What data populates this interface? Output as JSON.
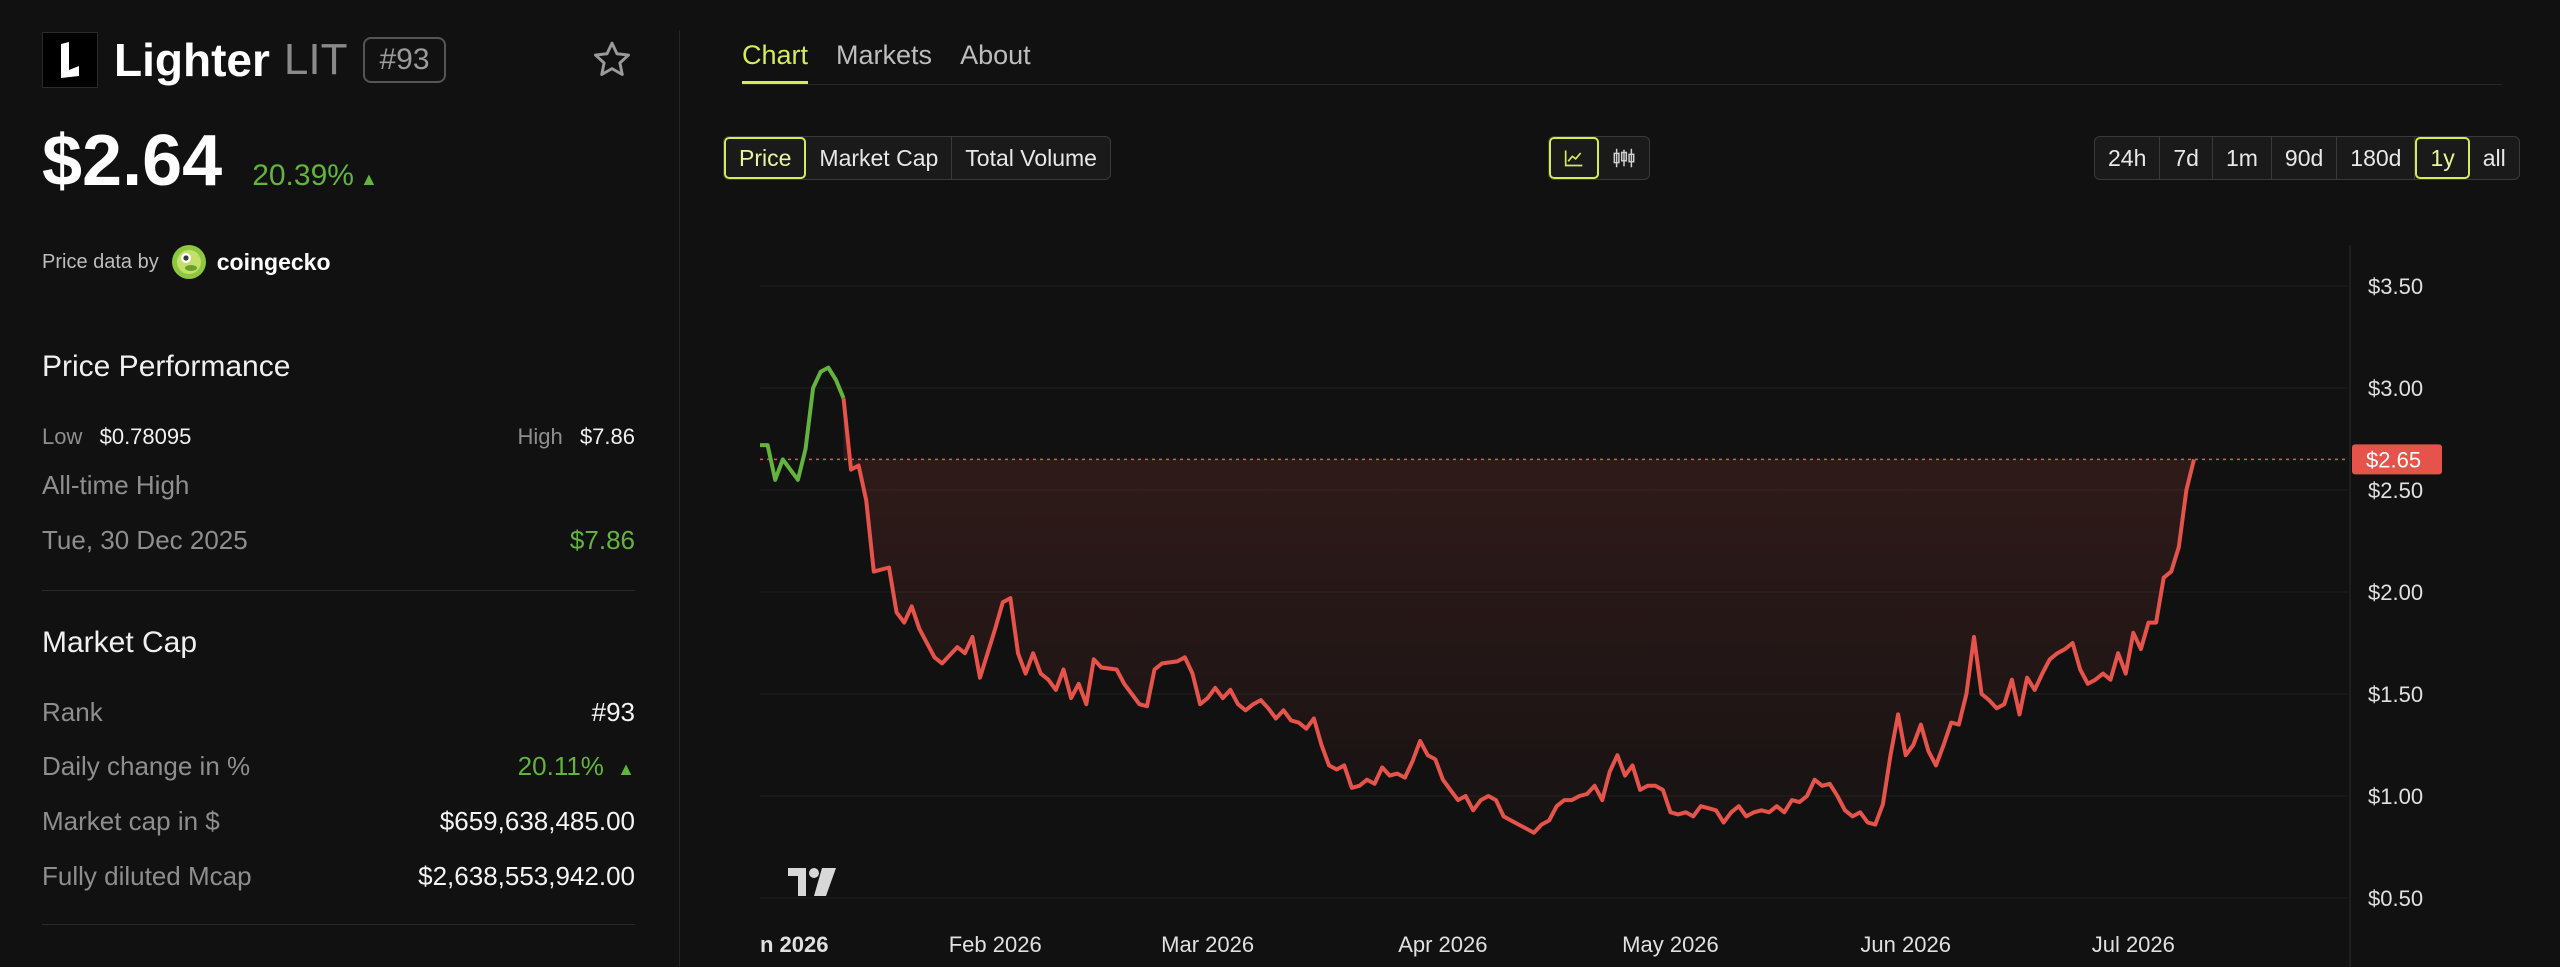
{
  "coin": {
    "name": "Lighter",
    "symbol": "LIT",
    "rank": "#93",
    "price": "$2.64",
    "change_24h": "20.39%"
  },
  "price_source": {
    "prefix": "Price data by",
    "provider": "coingecko"
  },
  "price_performance": {
    "title": "Price Performance",
    "low_label": "Low",
    "low_value": "$0.78095",
    "high_label": "High",
    "high_value": "$7.86",
    "ath_label": "All-time High",
    "ath_date": "Tue, 30 Dec 2025",
    "ath_value": "$7.86"
  },
  "market_cap": {
    "title": "Market Cap",
    "rows": [
      {
        "label": "Rank",
        "value": "#93"
      },
      {
        "label": "Daily change in %",
        "value": "20.11%"
      },
      {
        "label": "Market cap in $",
        "value": "$659,638,485.00"
      },
      {
        "label": "Fully diluted Mcap",
        "value": "$2,638,553,942.00"
      }
    ]
  },
  "tabs": [
    "Chart",
    "Markets",
    "About"
  ],
  "active_tab": "Chart",
  "metric_buttons": [
    "Price",
    "Market Cap",
    "Total Volume"
  ],
  "active_metric": "Price",
  "chart_type_buttons": [
    "line-chart-icon",
    "candlestick-icon"
  ],
  "range_buttons": [
    "24h",
    "7d",
    "1m",
    "90d",
    "180d",
    "1y",
    "all"
  ],
  "active_range": "1y",
  "colors": {
    "accent": "#d4ec57",
    "up": "#63b33e",
    "down": "#e5534b",
    "background": "#111111"
  },
  "chart_data": {
    "type": "line",
    "current_price_label": "$2.65",
    "current_price": 2.65,
    "ylim": [
      0.5,
      3.75
    ],
    "y_ticks": [
      {
        "value": 3.5,
        "label": "$3.50"
      },
      {
        "value": 3.0,
        "label": "$3.00"
      },
      {
        "value": 2.5,
        "label": "$2.50"
      },
      {
        "value": 2.0,
        "label": "$2.00"
      },
      {
        "value": 1.5,
        "label": "$1.50"
      },
      {
        "value": 1.0,
        "label": "$1.00"
      },
      {
        "value": 0.5,
        "label": "$0.50"
      }
    ],
    "x_start": "2026-01-01",
    "x_end": "2026-07-10",
    "x_ticks": [
      {
        "date": "2026-01-01",
        "label": "n 2026",
        "bold": true
      },
      {
        "date": "2026-02-01",
        "label": "Feb 2026"
      },
      {
        "date": "2026-03-01",
        "label": "Mar 2026"
      },
      {
        "date": "2026-04-01",
        "label": "Apr 2026"
      },
      {
        "date": "2026-05-01",
        "label": "May 2026"
      },
      {
        "date": "2026-06-01",
        "label": "Jun 2026"
      },
      {
        "date": "2026-07-01",
        "label": "Jul 2026"
      }
    ],
    "green_series": [
      {
        "x": "2026-01-01",
        "y": 2.72
      },
      {
        "x": "2026-01-02",
        "y": 2.72
      },
      {
        "x": "2026-01-03",
        "y": 2.55
      },
      {
        "x": "2026-01-04",
        "y": 2.65
      },
      {
        "x": "2026-01-05",
        "y": 2.6
      },
      {
        "x": "2026-01-06",
        "y": 2.55
      },
      {
        "x": "2026-01-07",
        "y": 2.7
      },
      {
        "x": "2026-01-08",
        "y": 3.0
      },
      {
        "x": "2026-01-09",
        "y": 3.08
      },
      {
        "x": "2026-01-10",
        "y": 3.1
      },
      {
        "x": "2026-01-11",
        "y": 3.04
      },
      {
        "x": "2026-01-12",
        "y": 2.95
      }
    ],
    "red_series": [
      {
        "x": "2026-01-12",
        "y": 2.95
      },
      {
        "x": "2026-01-13",
        "y": 2.6
      },
      {
        "x": "2026-01-14",
        "y": 2.62
      },
      {
        "x": "2026-01-15",
        "y": 2.45
      },
      {
        "x": "2026-01-16",
        "y": 2.1
      },
      {
        "x": "2026-01-18",
        "y": 2.12
      },
      {
        "x": "2026-01-19",
        "y": 1.9
      },
      {
        "x": "2026-01-20",
        "y": 1.85
      },
      {
        "x": "2026-01-21",
        "y": 1.93
      },
      {
        "x": "2026-01-22",
        "y": 1.82
      },
      {
        "x": "2026-01-24",
        "y": 1.68
      },
      {
        "x": "2026-01-25",
        "y": 1.65
      },
      {
        "x": "2026-01-27",
        "y": 1.73
      },
      {
        "x": "2026-01-28",
        "y": 1.7
      },
      {
        "x": "2026-01-29",
        "y": 1.78
      },
      {
        "x": "2026-01-30",
        "y": 1.58
      },
      {
        "x": "2026-02-01",
        "y": 1.82
      },
      {
        "x": "2026-02-02",
        "y": 1.95
      },
      {
        "x": "2026-02-03",
        "y": 1.97
      },
      {
        "x": "2026-02-04",
        "y": 1.7
      },
      {
        "x": "2026-02-05",
        "y": 1.6
      },
      {
        "x": "2026-02-06",
        "y": 1.7
      },
      {
        "x": "2026-02-07",
        "y": 1.6
      },
      {
        "x": "2026-02-08",
        "y": 1.57
      },
      {
        "x": "2026-02-09",
        "y": 1.52
      },
      {
        "x": "2026-02-10",
        "y": 1.62
      },
      {
        "x": "2026-02-11",
        "y": 1.48
      },
      {
        "x": "2026-02-12",
        "y": 1.55
      },
      {
        "x": "2026-02-13",
        "y": 1.45
      },
      {
        "x": "2026-02-14",
        "y": 1.67
      },
      {
        "x": "2026-02-15",
        "y": 1.63
      },
      {
        "x": "2026-02-17",
        "y": 1.62
      },
      {
        "x": "2026-02-18",
        "y": 1.55
      },
      {
        "x": "2026-02-19",
        "y": 1.5
      },
      {
        "x": "2026-02-20",
        "y": 1.45
      },
      {
        "x": "2026-02-21",
        "y": 1.44
      },
      {
        "x": "2026-02-22",
        "y": 1.62
      },
      {
        "x": "2026-02-23",
        "y": 1.65
      },
      {
        "x": "2026-02-25",
        "y": 1.66
      },
      {
        "x": "2026-02-26",
        "y": 1.68
      },
      {
        "x": "2026-02-27",
        "y": 1.6
      },
      {
        "x": "2026-02-28",
        "y": 1.45
      },
      {
        "x": "2026-03-01",
        "y": 1.48
      },
      {
        "x": "2026-03-02",
        "y": 1.53
      },
      {
        "x": "2026-03-03",
        "y": 1.48
      },
      {
        "x": "2026-03-04",
        "y": 1.52
      },
      {
        "x": "2026-03-05",
        "y": 1.45
      },
      {
        "x": "2026-03-06",
        "y": 1.42
      },
      {
        "x": "2026-03-07",
        "y": 1.45
      },
      {
        "x": "2026-03-08",
        "y": 1.47
      },
      {
        "x": "2026-03-09",
        "y": 1.43
      },
      {
        "x": "2026-03-10",
        "y": 1.38
      },
      {
        "x": "2026-03-11",
        "y": 1.42
      },
      {
        "x": "2026-03-12",
        "y": 1.37
      },
      {
        "x": "2026-03-13",
        "y": 1.36
      },
      {
        "x": "2026-03-14",
        "y": 1.33
      },
      {
        "x": "2026-03-15",
        "y": 1.38
      },
      {
        "x": "2026-03-16",
        "y": 1.25
      },
      {
        "x": "2026-03-17",
        "y": 1.15
      },
      {
        "x": "2026-03-18",
        "y": 1.13
      },
      {
        "x": "2026-03-19",
        "y": 1.15
      },
      {
        "x": "2026-03-20",
        "y": 1.04
      },
      {
        "x": "2026-03-21",
        "y": 1.05
      },
      {
        "x": "2026-03-22",
        "y": 1.08
      },
      {
        "x": "2026-03-23",
        "y": 1.06
      },
      {
        "x": "2026-03-24",
        "y": 1.14
      },
      {
        "x": "2026-03-25",
        "y": 1.1
      },
      {
        "x": "2026-03-26",
        "y": 1.11
      },
      {
        "x": "2026-03-27",
        "y": 1.09
      },
      {
        "x": "2026-03-28",
        "y": 1.17
      },
      {
        "x": "2026-03-29",
        "y": 1.27
      },
      {
        "x": "2026-03-30",
        "y": 1.2
      },
      {
        "x": "2026-03-31",
        "y": 1.18
      },
      {
        "x": "2026-04-01",
        "y": 1.08
      },
      {
        "x": "2026-04-02",
        "y": 1.03
      },
      {
        "x": "2026-04-03",
        "y": 0.98
      },
      {
        "x": "2026-04-04",
        "y": 1.0
      },
      {
        "x": "2026-04-05",
        "y": 0.93
      },
      {
        "x": "2026-04-06",
        "y": 0.98
      },
      {
        "x": "2026-04-07",
        "y": 1.0
      },
      {
        "x": "2026-04-08",
        "y": 0.98
      },
      {
        "x": "2026-04-09",
        "y": 0.9
      },
      {
        "x": "2026-04-10",
        "y": 0.88
      },
      {
        "x": "2026-04-11",
        "y": 0.86
      },
      {
        "x": "2026-04-12",
        "y": 0.84
      },
      {
        "x": "2026-04-13",
        "y": 0.82
      },
      {
        "x": "2026-04-14",
        "y": 0.86
      },
      {
        "x": "2026-04-15",
        "y": 0.88
      },
      {
        "x": "2026-04-16",
        "y": 0.95
      },
      {
        "x": "2026-04-17",
        "y": 0.98
      },
      {
        "x": "2026-04-18",
        "y": 0.98
      },
      {
        "x": "2026-04-19",
        "y": 1.0
      },
      {
        "x": "2026-04-20",
        "y": 1.01
      },
      {
        "x": "2026-04-21",
        "y": 1.05
      },
      {
        "x": "2026-04-22",
        "y": 0.98
      },
      {
        "x": "2026-04-23",
        "y": 1.12
      },
      {
        "x": "2026-04-24",
        "y": 1.2
      },
      {
        "x": "2026-04-25",
        "y": 1.1
      },
      {
        "x": "2026-04-26",
        "y": 1.15
      },
      {
        "x": "2026-04-27",
        "y": 1.03
      },
      {
        "x": "2026-04-28",
        "y": 1.05
      },
      {
        "x": "2026-04-29",
        "y": 1.05
      },
      {
        "x": "2026-04-30",
        "y": 1.03
      },
      {
        "x": "2026-05-01",
        "y": 0.92
      },
      {
        "x": "2026-05-02",
        "y": 0.91
      },
      {
        "x": "2026-05-03",
        "y": 0.92
      },
      {
        "x": "2026-05-04",
        "y": 0.9
      },
      {
        "x": "2026-05-05",
        "y": 0.95
      },
      {
        "x": "2026-05-06",
        "y": 0.94
      },
      {
        "x": "2026-05-07",
        "y": 0.93
      },
      {
        "x": "2026-05-08",
        "y": 0.87
      },
      {
        "x": "2026-05-09",
        "y": 0.92
      },
      {
        "x": "2026-05-10",
        "y": 0.95
      },
      {
        "x": "2026-05-11",
        "y": 0.9
      },
      {
        "x": "2026-05-12",
        "y": 0.92
      },
      {
        "x": "2026-05-13",
        "y": 0.93
      },
      {
        "x": "2026-05-14",
        "y": 0.92
      },
      {
        "x": "2026-05-15",
        "y": 0.95
      },
      {
        "x": "2026-05-16",
        "y": 0.92
      },
      {
        "x": "2026-05-17",
        "y": 0.98
      },
      {
        "x": "2026-05-18",
        "y": 0.97
      },
      {
        "x": "2026-05-19",
        "y": 1.0
      },
      {
        "x": "2026-05-20",
        "y": 1.08
      },
      {
        "x": "2026-05-21",
        "y": 1.05
      },
      {
        "x": "2026-05-22",
        "y": 1.06
      },
      {
        "x": "2026-05-23",
        "y": 1.0
      },
      {
        "x": "2026-05-24",
        "y": 0.93
      },
      {
        "x": "2026-05-25",
        "y": 0.9
      },
      {
        "x": "2026-05-26",
        "y": 0.92
      },
      {
        "x": "2026-05-27",
        "y": 0.87
      },
      {
        "x": "2026-05-28",
        "y": 0.86
      },
      {
        "x": "2026-05-29",
        "y": 0.96
      },
      {
        "x": "2026-05-30",
        "y": 1.2
      },
      {
        "x": "2026-05-31",
        "y": 1.4
      },
      {
        "x": "2026-06-01",
        "y": 1.2
      },
      {
        "x": "2026-06-02",
        "y": 1.25
      },
      {
        "x": "2026-06-03",
        "y": 1.35
      },
      {
        "x": "2026-06-04",
        "y": 1.22
      },
      {
        "x": "2026-06-05",
        "y": 1.15
      },
      {
        "x": "2026-06-06",
        "y": 1.25
      },
      {
        "x": "2026-06-07",
        "y": 1.36
      },
      {
        "x": "2026-06-08",
        "y": 1.35
      },
      {
        "x": "2026-06-09",
        "y": 1.5
      },
      {
        "x": "2026-06-10",
        "y": 1.78
      },
      {
        "x": "2026-06-11",
        "y": 1.5
      },
      {
        "x": "2026-06-12",
        "y": 1.47
      },
      {
        "x": "2026-06-13",
        "y": 1.43
      },
      {
        "x": "2026-06-14",
        "y": 1.45
      },
      {
        "x": "2026-06-15",
        "y": 1.57
      },
      {
        "x": "2026-06-16",
        "y": 1.4
      },
      {
        "x": "2026-06-17",
        "y": 1.58
      },
      {
        "x": "2026-06-18",
        "y": 1.52
      },
      {
        "x": "2026-06-19",
        "y": 1.6
      },
      {
        "x": "2026-06-20",
        "y": 1.67
      },
      {
        "x": "2026-06-21",
        "y": 1.7
      },
      {
        "x": "2026-06-22",
        "y": 1.72
      },
      {
        "x": "2026-06-23",
        "y": 1.75
      },
      {
        "x": "2026-06-24",
        "y": 1.62
      },
      {
        "x": "2026-06-25",
        "y": 1.55
      },
      {
        "x": "2026-06-26",
        "y": 1.57
      },
      {
        "x": "2026-06-27",
        "y": 1.6
      },
      {
        "x": "2026-06-28",
        "y": 1.57
      },
      {
        "x": "2026-06-29",
        "y": 1.7
      },
      {
        "x": "2026-06-30",
        "y": 1.6
      },
      {
        "x": "2026-07-01",
        "y": 1.8
      },
      {
        "x": "2026-07-02",
        "y": 1.72
      },
      {
        "x": "2026-07-03",
        "y": 1.85
      },
      {
        "x": "2026-07-04",
        "y": 1.85
      },
      {
        "x": "2026-07-05",
        "y": 2.07
      },
      {
        "x": "2026-07-06",
        "y": 2.1
      },
      {
        "x": "2026-07-07",
        "y": 2.22
      },
      {
        "x": "2026-07-08",
        "y": 2.5
      },
      {
        "x": "2026-07-09",
        "y": 2.65
      }
    ]
  }
}
